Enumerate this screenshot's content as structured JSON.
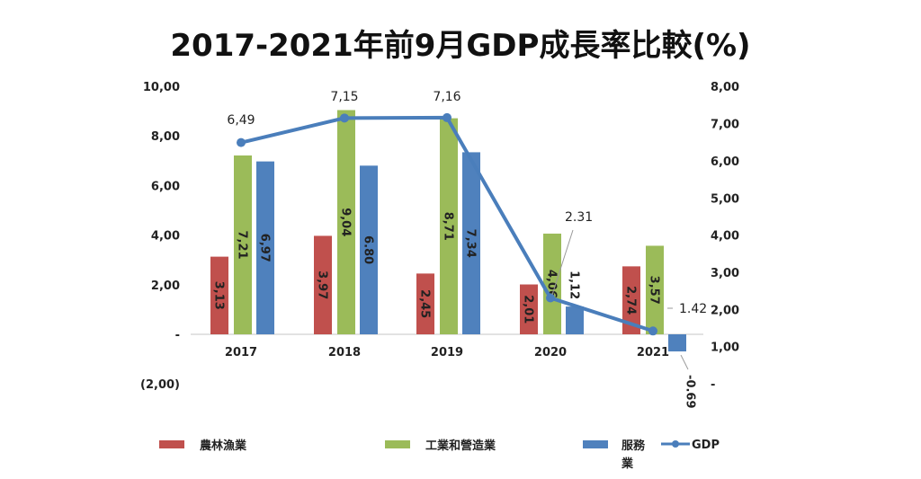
{
  "chart_data": {
    "type": "bar",
    "title": "2017-2021年前9月GDP成長率比較(%)",
    "categories": [
      "2017",
      "2018",
      "2019",
      "2020",
      "2021"
    ],
    "series": [
      {
        "name": "農林漁業",
        "axis": "left",
        "color": "#c0504d",
        "values": [
          3.13,
          3.97,
          2.45,
          2.01,
          2.74
        ],
        "labels": [
          "3,13",
          "3,97",
          "2,45",
          "2,01",
          "2,74"
        ]
      },
      {
        "name": "工業和營造業",
        "axis": "left",
        "color": "#9bbb59",
        "values": [
          7.21,
          9.04,
          8.71,
          4.06,
          3.57
        ],
        "labels": [
          "7,21",
          "9,04",
          "8,71",
          "4,06",
          "3,57"
        ]
      },
      {
        "name": "服務業",
        "axis": "left",
        "color": "#4f81bd",
        "values": [
          6.97,
          6.8,
          7.34,
          1.12,
          -0.69
        ],
        "labels": [
          "6,97",
          "6.80",
          "7,34",
          "1,12",
          "-0.69"
        ]
      },
      {
        "name": "GDP",
        "axis": "right",
        "type": "line",
        "color": "#4a7ebb",
        "values": [
          6.49,
          7.15,
          7.16,
          2.31,
          1.42
        ],
        "labels": [
          "6,49",
          "7,15",
          "7,16",
          "2.31",
          "1.42"
        ]
      }
    ],
    "left_axis": {
      "range": [
        -2,
        10
      ],
      "ticks": [
        "(2,00)",
        "-",
        "2,00",
        "4,00",
        "6,00",
        "8,00",
        "10,00"
      ]
    },
    "right_axis": {
      "range": [
        0,
        8
      ],
      "ticks": [
        "-",
        "1,00",
        "2,00",
        "3,00",
        "4,00",
        "5,00",
        "6,00",
        "7,00",
        "8,00"
      ]
    },
    "legend": {
      "position": "bottom",
      "items": [
        "農林漁業",
        "工業和營造業",
        "服務",
        "業",
        "GDP"
      ]
    },
    "grid": false
  }
}
